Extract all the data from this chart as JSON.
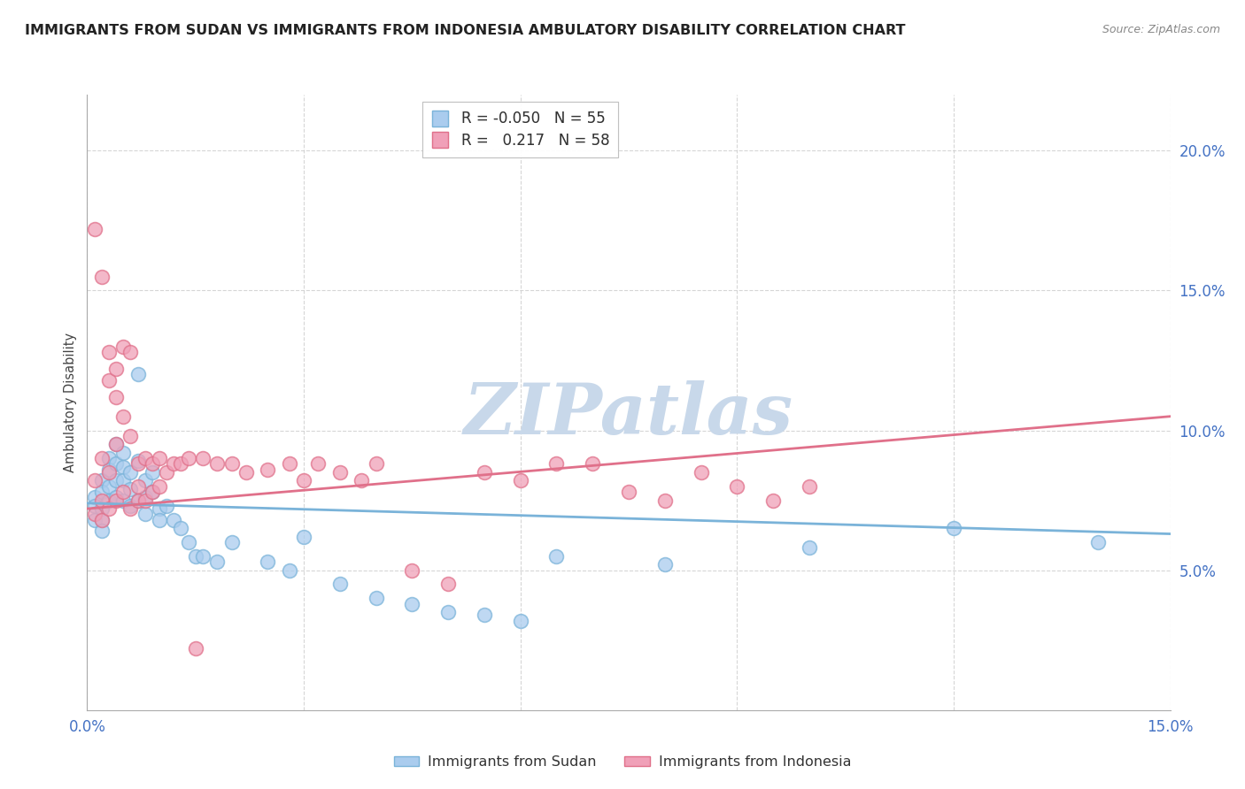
{
  "title": "IMMIGRANTS FROM SUDAN VS IMMIGRANTS FROM INDONESIA AMBULATORY DISABILITY CORRELATION CHART",
  "source": "Source: ZipAtlas.com",
  "ylabel": "Ambulatory Disability",
  "xlim": [
    0.0,
    0.15
  ],
  "ylim": [
    0.0,
    0.22
  ],
  "xticks": [
    0.0,
    0.03,
    0.06,
    0.09,
    0.12,
    0.15
  ],
  "yticks": [
    0.05,
    0.1,
    0.15,
    0.2
  ],
  "ytick_labels": [
    "5.0%",
    "10.0%",
    "15.0%",
    "20.0%"
  ],
  "xtick_labels": [
    "0.0%",
    "",
    "",
    "",
    "",
    "15.0%"
  ],
  "series": [
    {
      "name": "Immigrants from Sudan",
      "color": "#7ab3d9",
      "face_color": "#aaccee",
      "R": -0.05,
      "N": 55,
      "x": [
        0.001,
        0.001,
        0.001,
        0.002,
        0.002,
        0.002,
        0.002,
        0.002,
        0.003,
        0.003,
        0.003,
        0.003,
        0.004,
        0.004,
        0.004,
        0.004,
        0.005,
        0.005,
        0.005,
        0.005,
        0.006,
        0.006,
        0.006,
        0.007,
        0.007,
        0.007,
        0.008,
        0.008,
        0.008,
        0.009,
        0.009,
        0.01,
        0.01,
        0.011,
        0.012,
        0.013,
        0.014,
        0.015,
        0.016,
        0.018,
        0.02,
        0.025,
        0.028,
        0.03,
        0.035,
        0.04,
        0.045,
        0.05,
        0.055,
        0.06,
        0.065,
        0.08,
        0.1,
        0.12,
        0.14
      ],
      "y": [
        0.076,
        0.073,
        0.068,
        0.082,
        0.078,
        0.072,
        0.068,
        0.064,
        0.09,
        0.086,
        0.08,
        0.075,
        0.095,
        0.088,
        0.082,
        0.076,
        0.092,
        0.087,
        0.082,
        0.075,
        0.085,
        0.079,
        0.073,
        0.12,
        0.089,
        0.075,
        0.082,
        0.076,
        0.07,
        0.085,
        0.078,
        0.072,
        0.068,
        0.073,
        0.068,
        0.065,
        0.06,
        0.055,
        0.055,
        0.053,
        0.06,
        0.053,
        0.05,
        0.062,
        0.045,
        0.04,
        0.038,
        0.035,
        0.034,
        0.032,
        0.055,
        0.052,
        0.058,
        0.065,
        0.06
      ]
    },
    {
      "name": "Immigrants from Indonesia",
      "color": "#e0708a",
      "face_color": "#f0a0b8",
      "R": 0.217,
      "N": 58,
      "x": [
        0.001,
        0.001,
        0.001,
        0.002,
        0.002,
        0.002,
        0.002,
        0.003,
        0.003,
        0.003,
        0.003,
        0.004,
        0.004,
        0.004,
        0.004,
        0.005,
        0.005,
        0.005,
        0.006,
        0.006,
        0.006,
        0.007,
        0.007,
        0.007,
        0.008,
        0.008,
        0.009,
        0.009,
        0.01,
        0.01,
        0.011,
        0.012,
        0.013,
        0.014,
        0.015,
        0.016,
        0.018,
        0.02,
        0.022,
        0.025,
        0.028,
        0.03,
        0.032,
        0.035,
        0.038,
        0.04,
        0.045,
        0.05,
        0.055,
        0.06,
        0.065,
        0.07,
        0.075,
        0.08,
        0.085,
        0.09,
        0.095,
        0.1
      ],
      "y": [
        0.172,
        0.082,
        0.07,
        0.155,
        0.09,
        0.075,
        0.068,
        0.128,
        0.118,
        0.085,
        0.072,
        0.122,
        0.112,
        0.095,
        0.075,
        0.13,
        0.105,
        0.078,
        0.128,
        0.098,
        0.072,
        0.088,
        0.08,
        0.075,
        0.09,
        0.075,
        0.088,
        0.078,
        0.09,
        0.08,
        0.085,
        0.088,
        0.088,
        0.09,
        0.022,
        0.09,
        0.088,
        0.088,
        0.085,
        0.086,
        0.088,
        0.082,
        0.088,
        0.085,
        0.082,
        0.088,
        0.05,
        0.045,
        0.085,
        0.082,
        0.088,
        0.088,
        0.078,
        0.075,
        0.085,
        0.08,
        0.075,
        0.08
      ]
    }
  ],
  "sudan_line": {
    "x0": 0.0,
    "y0": 0.074,
    "x1": 0.15,
    "y1": 0.063
  },
  "indonesia_line": {
    "x0": 0.0,
    "y0": 0.072,
    "x1": 0.15,
    "y1": 0.105
  },
  "watermark": "ZIPatlas",
  "watermark_color": "#c8d8ea",
  "background_color": "#ffffff",
  "grid_color": "#cccccc",
  "axis_color": "#4472c4",
  "title_fontsize": 11.5,
  "source_fontsize": 9
}
